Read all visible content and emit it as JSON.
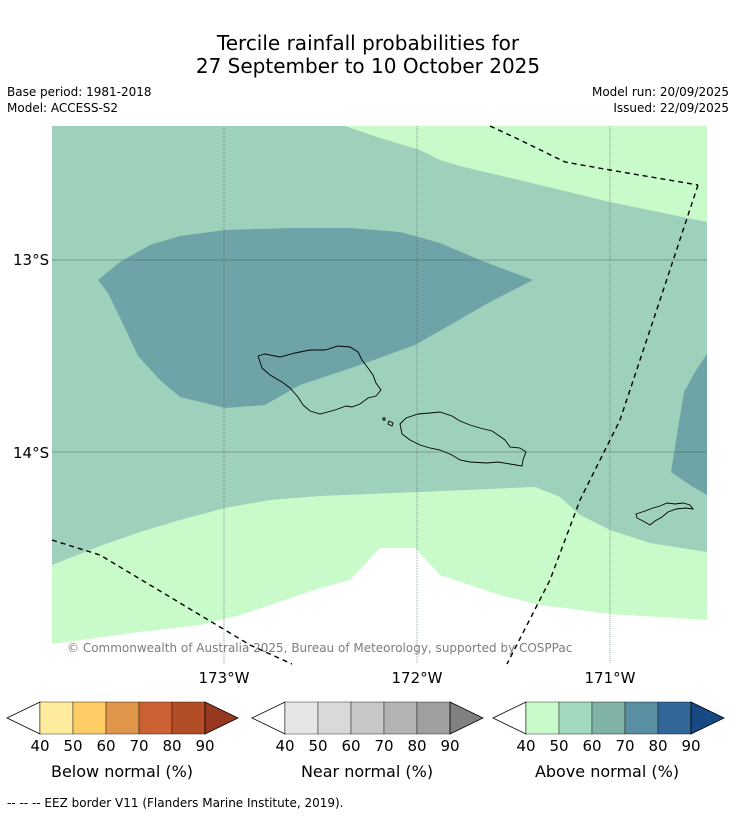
{
  "title": {
    "line1": "Tercile rainfall probabilities for",
    "line2": "27 September to 10 October 2025"
  },
  "meta": {
    "base_period": "Base period: 1981-2018",
    "model": "Model: ACCESS-S2",
    "model_run": "Model run: 20/09/2025",
    "issued": "Issued: 22/09/2025"
  },
  "map": {
    "lat_labels": [
      "13°S",
      "14°S"
    ],
    "lon_labels": [
      "173°W",
      "172°W",
      "171°W"
    ],
    "copyright": "© Commonwealth of Australia 2025, Bureau of Meteorology, supported by COSPPac",
    "colors": {
      "above_50": "#c9fac9",
      "above_60": "#9ed1bb",
      "above_70": "#6ea3a8",
      "coast": "#000000",
      "eez": "#000000",
      "grid": "#4d6b63"
    }
  },
  "colorbars": [
    {
      "name": "below",
      "label": "Below normal (%)",
      "ticks": [
        "40",
        "50",
        "60",
        "70",
        "80",
        "90"
      ],
      "colors": [
        "#ffffff",
        "#ffeb9e",
        "#ffcc66",
        "#e0964a",
        "#cc6133",
        "#b34d26",
        "#993820"
      ]
    },
    {
      "name": "near",
      "label": "Near normal (%)",
      "ticks": [
        "40",
        "50",
        "60",
        "70",
        "80",
        "90"
      ],
      "colors": [
        "#ffffff",
        "#e6e6e6",
        "#d9d9d9",
        "#c7c7c7",
        "#b3b3b3",
        "#a0a0a0",
        "#808080"
      ]
    },
    {
      "name": "above",
      "label": "Above normal (%)",
      "ticks": [
        "40",
        "50",
        "60",
        "70",
        "80",
        "90"
      ],
      "colors": [
        "#ffffff",
        "#c9fac9",
        "#a3d9bf",
        "#80b3a6",
        "#5a8fa1",
        "#336699",
        "#174a85"
      ]
    }
  ],
  "footer": "-- -- -- EEZ border V11 (Flanders Marine Institute, 2019)."
}
